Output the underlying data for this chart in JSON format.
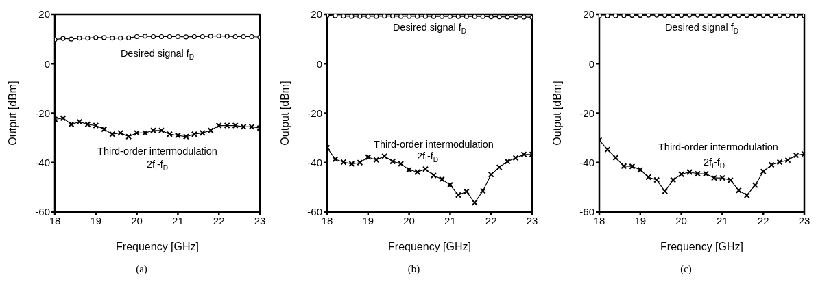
{
  "chart_data": [
    {
      "type": "line",
      "title": "(a)",
      "xlabel": "Frequency [GHz]",
      "ylabel": "Output [dBm]",
      "xlim": [
        18,
        23
      ],
      "ylim": [
        -60,
        20
      ],
      "xticks": [
        18,
        19,
        20,
        21,
        22,
        23
      ],
      "yticks": [
        -60,
        -40,
        -20,
        0,
        20
      ],
      "x": [
        18,
        18.2,
        18.4,
        18.6,
        18.8,
        19,
        19.2,
        19.4,
        19.6,
        19.8,
        20,
        20.2,
        20.4,
        20.6,
        20.8,
        21,
        21.2,
        21.4,
        21.6,
        21.8,
        22,
        22.2,
        22.4,
        22.6,
        22.8,
        23
      ],
      "series": [
        {
          "color": "#000000",
          "marker": "circle",
          "values": [
            9.8,
            10.3,
            10,
            10.4,
            10.4,
            10.6,
            10.6,
            10.4,
            10.4,
            10.5,
            11,
            11.2,
            11,
            11,
            11,
            11,
            10.9,
            11,
            11,
            11.2,
            11.3,
            11.2,
            11,
            11,
            11,
            10.8
          ]
        },
        {
          "color": "#000000",
          "marker": "cross",
          "values": [
            -22.5,
            -22,
            -24.5,
            -23.5,
            -24.5,
            -25,
            -26.5,
            -28.5,
            -28,
            -29.5,
            -28,
            -28,
            -27,
            -27,
            -28.5,
            -29,
            -29.5,
            -28.5,
            -28,
            -27,
            -25,
            -25,
            -25,
            -25.5,
            -25.5,
            -26
          ]
        }
      ],
      "annotations": [
        "Desired signal f$_{D}$",
        "Third-order intermodulation",
        "2f$_{I}$-f$_{D}$"
      ]
    },
    {
      "type": "line",
      "title": "(b)",
      "xlabel": "Frequency [GHz]",
      "ylabel": "Output [dBm]",
      "xlim": [
        18,
        23
      ],
      "ylim": [
        -60,
        20
      ],
      "xticks": [
        18,
        19,
        20,
        21,
        22,
        23
      ],
      "yticks": [
        -60,
        -40,
        -20,
        0,
        20
      ],
      "x": [
        18,
        18.2,
        18.4,
        18.6,
        18.8,
        19,
        19.2,
        19.4,
        19.6,
        19.8,
        20,
        20.2,
        20.4,
        20.6,
        20.8,
        21,
        21.2,
        21.4,
        21.6,
        21.8,
        22,
        22.2,
        22.4,
        22.6,
        22.8,
        23
      ],
      "series": [
        {
          "color": "#000000",
          "marker": "circle",
          "values": [
            19.6,
            19.4,
            19.3,
            19.2,
            19.2,
            19.2,
            19.2,
            19.3,
            19.3,
            19.2,
            19.2,
            19.2,
            19.2,
            19.1,
            19.1,
            19.1,
            19.1,
            19.1,
            19.1,
            19.1,
            19,
            19,
            18.9,
            18.9,
            18.9,
            18.8
          ]
        },
        {
          "color": "#000000",
          "marker": "cross",
          "values": [
            -34,
            -38.6,
            -39.8,
            -40.5,
            -40,
            -37.8,
            -38.9,
            -37.4,
            -39.5,
            -40.5,
            -42.9,
            -43.8,
            -42.6,
            -45.2,
            -46.7,
            -49,
            -53.1,
            -51.7,
            -56.2,
            -51.4,
            -44.8,
            -41.9,
            -39.5,
            -38.1,
            -36.7,
            -36.7
          ]
        }
      ],
      "annotations": [
        "Desired signal f$_{D}$",
        "Third-order intermodulation",
        "2f$_{I}$-f$_{D}$"
      ]
    },
    {
      "type": "line",
      "title": "(c)",
      "xlabel": "Frequency [GHz]",
      "ylabel": "Output [dBm]",
      "xlim": [
        18,
        23
      ],
      "ylim": [
        -60,
        20
      ],
      "xticks": [
        18,
        19,
        20,
        21,
        22,
        23
      ],
      "yticks": [
        -60,
        -40,
        -20,
        0,
        20
      ],
      "x": [
        18,
        18.2,
        18.4,
        18.6,
        18.8,
        19,
        19.2,
        19.4,
        19.6,
        19.8,
        20,
        20.2,
        20.4,
        20.6,
        20.8,
        21,
        21.2,
        21.4,
        21.6,
        21.8,
        22,
        22.2,
        22.4,
        22.6,
        22.8,
        23
      ],
      "series": [
        {
          "color": "#000000",
          "marker": "circle",
          "values": [
            19.4,
            19.4,
            19.4,
            19.5,
            19.6,
            19.6,
            19.7,
            19.7,
            19.6,
            19.6,
            19.6,
            19.7,
            19.7,
            19.6,
            19.6,
            19.6,
            19.6,
            19.6,
            19.6,
            19.6,
            19.6,
            19.6,
            19.5,
            19.5,
            19.4,
            19.4
          ]
        },
        {
          "color": "#000000",
          "marker": "cross",
          "values": [
            -30.9,
            -34.7,
            -38,
            -41.4,
            -41.5,
            -42.9,
            -45.9,
            -47,
            -51.6,
            -47,
            -44.7,
            -43.8,
            -44.5,
            -44.5,
            -46.2,
            -46.2,
            -47.1,
            -51.2,
            -53.2,
            -49.1,
            -43.6,
            -40.9,
            -39.8,
            -39,
            -37,
            -36.5
          ]
        }
      ],
      "annotations": [
        "Desired signal f$_{D}$",
        "Third-order intermodulation",
        "2f$_{I}$-f$_{D}$"
      ]
    }
  ]
}
